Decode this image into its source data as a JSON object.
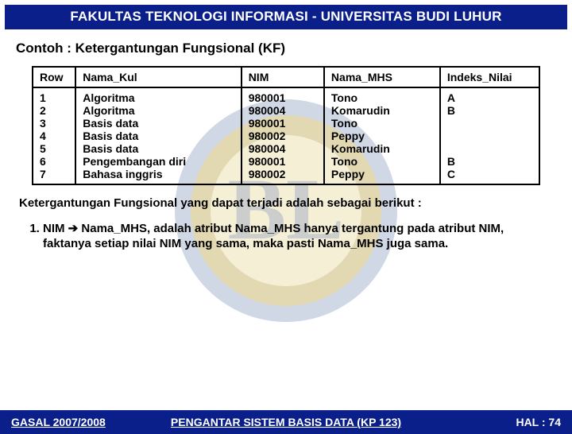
{
  "header": "FAKULTAS TEKNOLOGI INFORMASI - UNIVERSITAS BUDI LUHUR",
  "subtitle": "Contoh  :  Ketergantungan Fungsional  (KF)",
  "table": {
    "headers": [
      "Row",
      "Nama_Kul",
      "NIM",
      "Nama_MHS",
      "Indeks_Nilai"
    ],
    "rows": [
      [
        "1",
        "Algoritma",
        "980001",
        "Tono",
        "A"
      ],
      [
        "2",
        "Algoritma",
        "980004",
        "Komarudin",
        "B"
      ],
      [
        "3",
        "Basis data",
        "980001",
        "Tono",
        ""
      ],
      [
        "4",
        "Basis data",
        "980002",
        "Peppy",
        ""
      ],
      [
        "5",
        "Basis data",
        "980004",
        "Komarudin",
        ""
      ],
      [
        "6",
        "Pengembangan diri",
        "980001",
        "Tono",
        "B"
      ],
      [
        "7",
        "Bahasa inggris",
        "980002",
        "Peppy",
        "C"
      ]
    ]
  },
  "paragraph": "Ketergantungan Fungsional yang dapat terjadi adalah sebagai berikut :",
  "point1_a": "NIM ",
  "point1_arrow": "➔",
  "point1_b": "  Nama_MHS,  adalah atribut Nama_MHS hanya tergantung pada atribut NIM, faktanya  setiap nilai NIM yang sama, maka pasti Nama_MHS juga sama.",
  "footer": {
    "left": "GASAL 2007/2008",
    "center": "PENGANTAR SISTEM BASIS DATA (KP 123)",
    "right": "HAL : 74"
  },
  "logo": {
    "outer": "#1a3a8a",
    "ring_outer": "#0b2f7a",
    "ring_inner": "#f2c200",
    "inner_fill": "#f9f3d0",
    "letters": "#1a3a8a"
  }
}
